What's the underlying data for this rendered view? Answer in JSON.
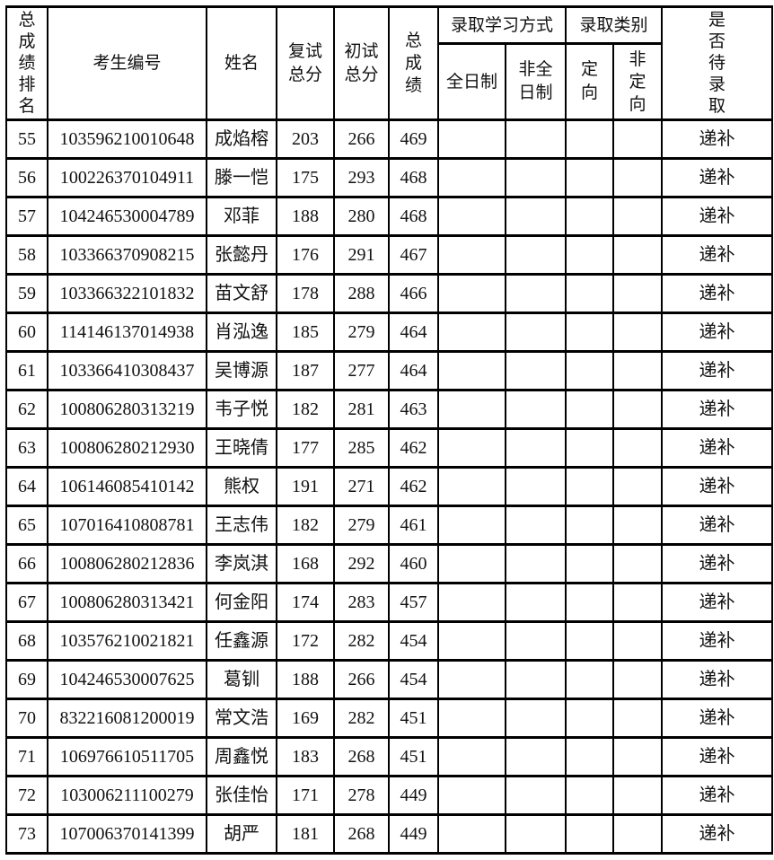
{
  "table": {
    "headers": {
      "rank": "总\n成\n绩\n排\n名",
      "candidate_id": "考生编号",
      "name": "姓名",
      "retest_total": "复试\n总分",
      "initial_total": "初试\n总分",
      "total_score": "总\n成\n绩",
      "study_mode_group": "录取学习方式",
      "full_time": "全日制",
      "part_time": "非全\n日制",
      "category_group": "录取类别",
      "directed": "定\n向",
      "non_directed": "非\n定\n向",
      "pending": "是\n否\n待\n录\n取"
    },
    "rows": [
      {
        "rank": "55",
        "candidate_id": "103596210010648",
        "name": "成焰榕",
        "retest_total": "203",
        "initial_total": "266",
        "total_score": "469",
        "full_time": "",
        "part_time": "",
        "directed": "",
        "non_directed": "",
        "pending_status": "递补"
      },
      {
        "rank": "56",
        "candidate_id": "100226370104911",
        "name": "滕一恺",
        "retest_total": "175",
        "initial_total": "293",
        "total_score": "468",
        "full_time": "",
        "part_time": "",
        "directed": "",
        "non_directed": "",
        "pending_status": "递补"
      },
      {
        "rank": "57",
        "candidate_id": "104246530004789",
        "name": "邓菲",
        "retest_total": "188",
        "initial_total": "280",
        "total_score": "468",
        "full_time": "",
        "part_time": "",
        "directed": "",
        "non_directed": "",
        "pending_status": "递补"
      },
      {
        "rank": "58",
        "candidate_id": "103366370908215",
        "name": "张懿丹",
        "retest_total": "176",
        "initial_total": "291",
        "total_score": "467",
        "full_time": "",
        "part_time": "",
        "directed": "",
        "non_directed": "",
        "pending_status": "递补"
      },
      {
        "rank": "59",
        "candidate_id": "103366322101832",
        "name": "苗文舒",
        "retest_total": "178",
        "initial_total": "288",
        "total_score": "466",
        "full_time": "",
        "part_time": "",
        "directed": "",
        "non_directed": "",
        "pending_status": "递补"
      },
      {
        "rank": "60",
        "candidate_id": "114146137014938",
        "name": "肖泓逸",
        "retest_total": "185",
        "initial_total": "279",
        "total_score": "464",
        "full_time": "",
        "part_time": "",
        "directed": "",
        "non_directed": "",
        "pending_status": "递补"
      },
      {
        "rank": "61",
        "candidate_id": "103366410308437",
        "name": "吴博源",
        "retest_total": "187",
        "initial_total": "277",
        "total_score": "464",
        "full_time": "",
        "part_time": "",
        "directed": "",
        "non_directed": "",
        "pending_status": "递补"
      },
      {
        "rank": "62",
        "candidate_id": "100806280313219",
        "name": "韦子悦",
        "retest_total": "182",
        "initial_total": "281",
        "total_score": "463",
        "full_time": "",
        "part_time": "",
        "directed": "",
        "non_directed": "",
        "pending_status": "递补"
      },
      {
        "rank": "63",
        "candidate_id": "100806280212930",
        "name": "王晓倩",
        "retest_total": "177",
        "initial_total": "285",
        "total_score": "462",
        "full_time": "",
        "part_time": "",
        "directed": "",
        "non_directed": "",
        "pending_status": "递补"
      },
      {
        "rank": "64",
        "candidate_id": "106146085410142",
        "name": "熊权",
        "retest_total": "191",
        "initial_total": "271",
        "total_score": "462",
        "full_time": "",
        "part_time": "",
        "directed": "",
        "non_directed": "",
        "pending_status": "递补"
      },
      {
        "rank": "65",
        "candidate_id": "107016410808781",
        "name": "王志伟",
        "retest_total": "182",
        "initial_total": "279",
        "total_score": "461",
        "full_time": "",
        "part_time": "",
        "directed": "",
        "non_directed": "",
        "pending_status": "递补"
      },
      {
        "rank": "66",
        "candidate_id": "100806280212836",
        "name": "李岚淇",
        "retest_total": "168",
        "initial_total": "292",
        "total_score": "460",
        "full_time": "",
        "part_time": "",
        "directed": "",
        "non_directed": "",
        "pending_status": "递补"
      },
      {
        "rank": "67",
        "candidate_id": "100806280313421",
        "name": "何金阳",
        "retest_total": "174",
        "initial_total": "283",
        "total_score": "457",
        "full_time": "",
        "part_time": "",
        "directed": "",
        "non_directed": "",
        "pending_status": "递补"
      },
      {
        "rank": "68",
        "candidate_id": "103576210021821",
        "name": "任鑫源",
        "retest_total": "172",
        "initial_total": "282",
        "total_score": "454",
        "full_time": "",
        "part_time": "",
        "directed": "",
        "non_directed": "",
        "pending_status": "递补"
      },
      {
        "rank": "69",
        "candidate_id": "104246530007625",
        "name": "葛钏",
        "retest_total": "188",
        "initial_total": "266",
        "total_score": "454",
        "full_time": "",
        "part_time": "",
        "directed": "",
        "non_directed": "",
        "pending_status": "递补"
      },
      {
        "rank": "70",
        "candidate_id": "832216081200019",
        "name": "常文浩",
        "retest_total": "169",
        "initial_total": "282",
        "total_score": "451",
        "full_time": "",
        "part_time": "",
        "directed": "",
        "non_directed": "",
        "pending_status": "递补"
      },
      {
        "rank": "71",
        "candidate_id": "106976610511705",
        "name": "周鑫悦",
        "retest_total": "183",
        "initial_total": "268",
        "total_score": "451",
        "full_time": "",
        "part_time": "",
        "directed": "",
        "non_directed": "",
        "pending_status": "递补"
      },
      {
        "rank": "72",
        "candidate_id": "103006211100279",
        "name": "张佳怡",
        "retest_total": "171",
        "initial_total": "278",
        "total_score": "449",
        "full_time": "",
        "part_time": "",
        "directed": "",
        "non_directed": "",
        "pending_status": "递补"
      },
      {
        "rank": "73",
        "candidate_id": "107006370141399",
        "name": "胡严",
        "retest_total": "181",
        "initial_total": "268",
        "total_score": "449",
        "full_time": "",
        "part_time": "",
        "directed": "",
        "non_directed": "",
        "pending_status": "递补"
      }
    ]
  }
}
